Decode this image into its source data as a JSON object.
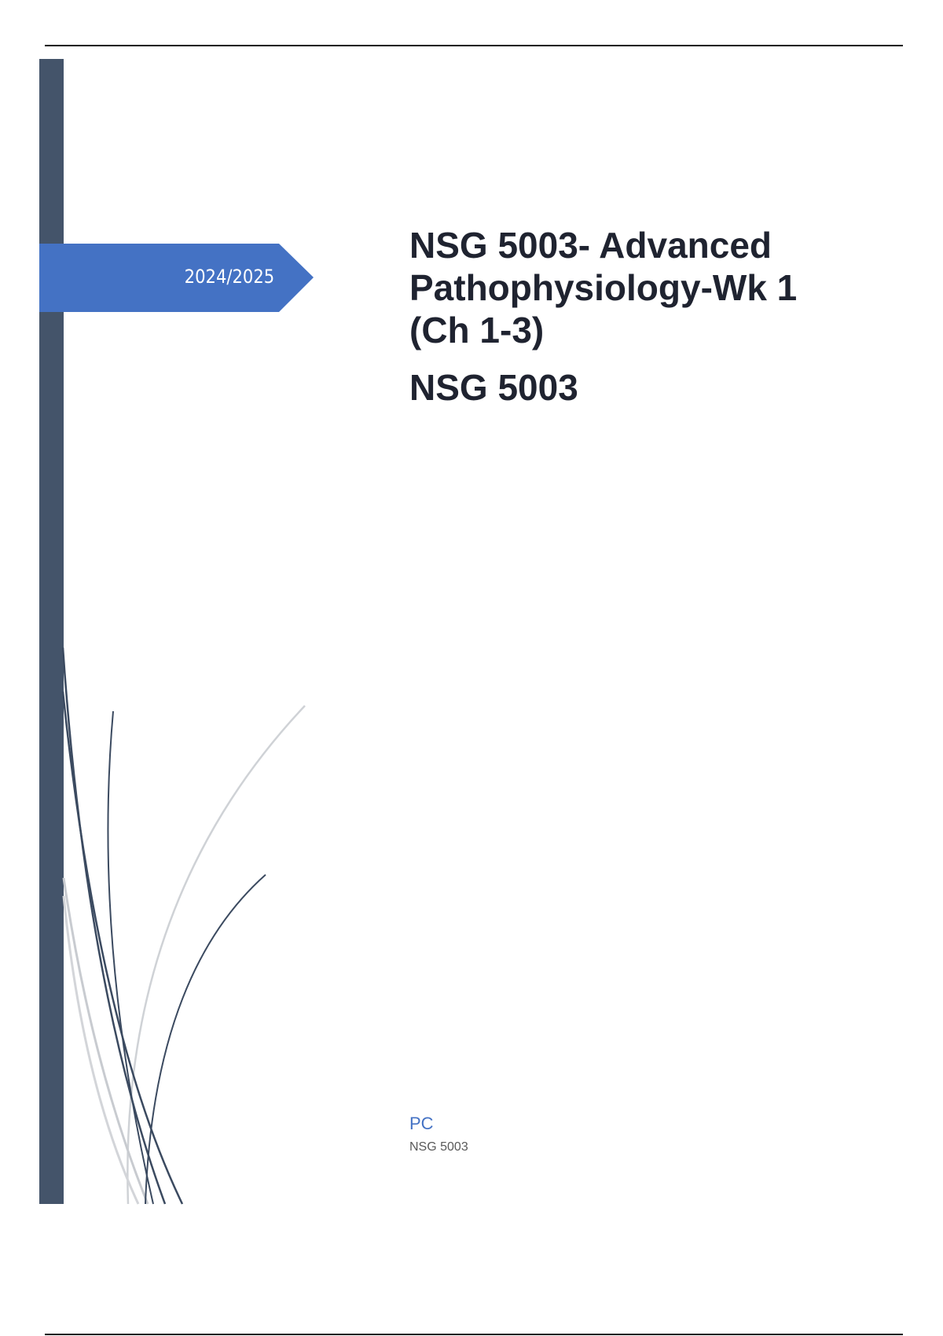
{
  "cover": {
    "year": "2024/2025",
    "title_lines": [
      "NSG 5003- Advanced",
      "Pathophysiology-Wk 1",
      "(Ch 1-3)"
    ],
    "subtitle": "NSG 5003",
    "author": "PC",
    "course": "NSG 5003"
  },
  "colors": {
    "sidebar": "#44546a",
    "banner": "#4472c4",
    "author": "#4472c4",
    "text": "#1f2330"
  }
}
